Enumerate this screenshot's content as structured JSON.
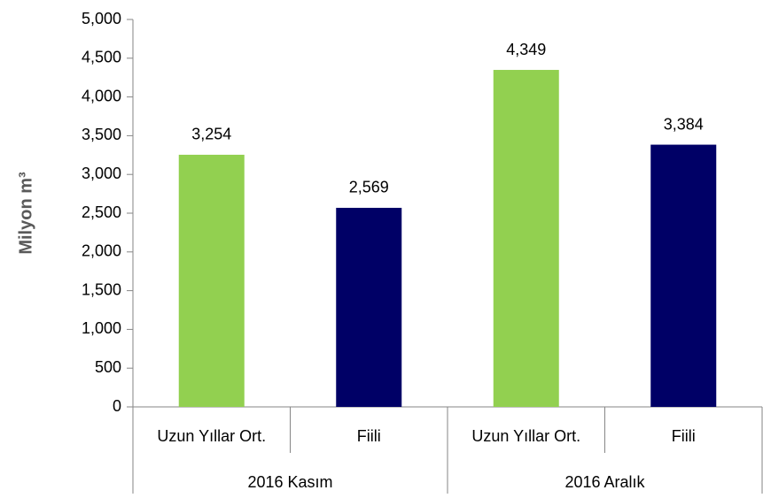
{
  "chart_data": {
    "type": "bar",
    "y_label": "Milyon m³",
    "categories": [
      "Uzun Yıllar Ort.",
      "Fiili",
      "Uzun Yıllar Ort.",
      "Fiili"
    ],
    "groups": [
      "2016 Kasım",
      "2016 Aralık"
    ],
    "values": [
      3254,
      2569,
      4349,
      3384
    ],
    "value_labels": [
      "3,254",
      "2,569",
      "4,349",
      "3,384"
    ],
    "colors": [
      "#92d050",
      "#000066",
      "#92d050",
      "#000066"
    ],
    "ylim": [
      0,
      5000
    ],
    "yticks": [
      0,
      500,
      {
        "value": 1000,
        "label": "1,000"
      },
      {
        "value": 1500,
        "label": "1,500"
      },
      {
        "value": 2000,
        "label": "2,000"
      },
      {
        "value": 2500,
        "label": "2,500"
      },
      {
        "value": 3000,
        "label": "3,000"
      },
      {
        "value": 3500,
        "label": "3,500"
      },
      {
        "value": 4000,
        "label": "4,000"
      },
      {
        "value": 4500,
        "label": "4,500"
      },
      {
        "value": 5000,
        "label": "5,000"
      }
    ],
    "grid": false
  }
}
